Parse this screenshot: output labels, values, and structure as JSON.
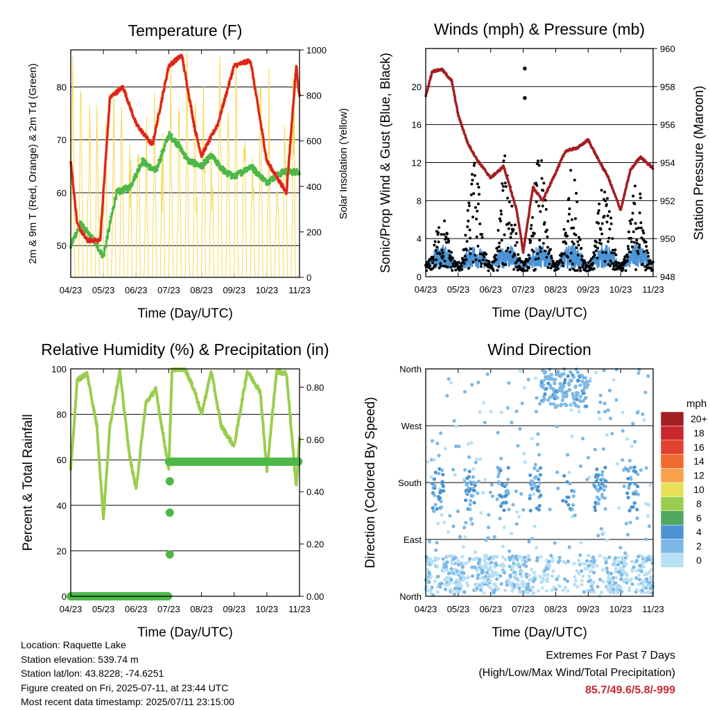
{
  "x_ticks": [
    "04/23",
    "05/23",
    "06/23",
    "07/23",
    "08/23",
    "09/23",
    "10/23",
    "11/23"
  ],
  "colors": {
    "temp_red": "#dd2222",
    "temp_orange": "#f6a336",
    "dewpoint_green": "#4db848",
    "solar_yellow": "#f7d94c",
    "wind_gust_black": "#000000",
    "wind_blue": "#4b93d4",
    "pressure_maroon": "#a31e22",
    "rh_green": "#9acd4e",
    "precip_green": "#4db848",
    "extremes_red": "#c8282d"
  },
  "chart_data": [
    {
      "type": "line",
      "title": "Temperature (F)",
      "xlabel": "Time (Day/UTC)",
      "ylabel": "2m & 9m T (Red, Orange) & 2m Td (Green)",
      "ylabel_right": "Solar Insolation (Yellow)",
      "ylim": [
        44,
        87
      ],
      "ylim_right": [
        0,
        1000
      ],
      "y_ticks": [
        50,
        60,
        70,
        80
      ],
      "y_ticks_right": [
        0,
        200,
        400,
        600,
        800,
        1000
      ],
      "series": [
        {
          "name": "2m T",
          "x": [
            0,
            0.2,
            0.5,
            0.9,
            1.2,
            1.6,
            2.0,
            2.5,
            3.0,
            3.4,
            3.8,
            4.0,
            4.5,
            5.0,
            5.5,
            6.0,
            6.3,
            6.6,
            6.9,
            7.0
          ],
          "values": [
            66,
            54,
            51,
            51,
            78,
            80,
            73,
            69,
            84,
            86,
            72,
            67,
            73,
            84,
            85,
            66,
            63,
            60,
            84,
            78
          ]
        },
        {
          "name": "2m Td",
          "x": [
            0,
            0.3,
            0.7,
            1.0,
            1.4,
            1.8,
            2.2,
            2.6,
            3.0,
            3.3,
            3.6,
            4.0,
            4.3,
            4.7,
            5.0,
            5.5,
            6.0,
            6.5,
            7.0
          ],
          "values": [
            50,
            54,
            51,
            48,
            60,
            61,
            66,
            64,
            71,
            69,
            66,
            65,
            67,
            64,
            63,
            65,
            62,
            64,
            64
          ]
        },
        {
          "name": "Solar Insolation",
          "y_axis": "right",
          "daily_peaks": [
            980,
            860,
            940,
            1000,
            980,
            990,
            1000,
            960
          ]
        }
      ]
    },
    {
      "type": "line",
      "title": "Winds (mph) & Pressure (mb)",
      "xlabel": "Time (Day/UTC)",
      "ylabel": "Sonic/Prop Wind & Gust (Blue, Black)",
      "ylabel_right": "Station Pressure (Maroon)",
      "ylim": [
        0,
        24
      ],
      "ylim_right": [
        948,
        960
      ],
      "y_ticks": [
        0,
        4,
        8,
        12,
        16,
        20
      ],
      "y_ticks_right": [
        948,
        950,
        952,
        954,
        956,
        958,
        960
      ],
      "series": [
        {
          "name": "Station Pressure",
          "y_axis": "right",
          "x": [
            0,
            0.2,
            0.5,
            0.8,
            1.0,
            1.3,
            1.6,
            2.0,
            2.4,
            2.8,
            3.0,
            3.3,
            3.6,
            3.9,
            4.3,
            4.7,
            5.0,
            5.3,
            5.6,
            6.0,
            6.3,
            6.6,
            7.0
          ],
          "values": [
            957.5,
            958.8,
            958.9,
            958.3,
            956.5,
            955.0,
            954.1,
            953.2,
            953.8,
            951.5,
            949.3,
            952.7,
            952.0,
            953.1,
            954.6,
            954.8,
            955.2,
            954.2,
            953.3,
            951.5,
            953.6,
            954.3,
            953.7
          ]
        },
        {
          "name": "Gust",
          "peak_max": [
            6,
            11.7,
            13.4,
            12.4,
            11.0,
            11.0,
            10.0,
            11.6
          ],
          "outliers": [
            [
              3.05,
              21.9
            ],
            [
              3.05,
              18.8
            ]
          ]
        },
        {
          "name": "Wind",
          "range": [
            0.3,
            3.5
          ]
        }
      ]
    },
    {
      "type": "line",
      "title": "Relative Humidity (%) & Precipitation (in)",
      "xlabel": "Time (Day/UTC)",
      "ylabel": "Percent & Total Rainfall",
      "ylim": [
        0,
        100
      ],
      "ylim_right": [
        0,
        0.87
      ],
      "y_ticks": [
        0,
        20,
        40,
        60,
        80,
        100
      ],
      "y_ticks_right": [
        "0.00",
        "0.20",
        "0.40",
        "0.60",
        "0.80"
      ],
      "series": [
        {
          "name": "RH",
          "x": [
            0,
            0.2,
            0.5,
            0.8,
            1.0,
            1.2,
            1.5,
            1.8,
            2.0,
            2.3,
            2.6,
            3.0,
            3.1,
            3.5,
            3.8,
            4.0,
            4.3,
            4.6,
            5.0,
            5.4,
            5.8,
            6.0,
            6.3,
            6.6,
            6.9,
            7.0
          ],
          "values": [
            56,
            95,
            98,
            75,
            34,
            75,
            99,
            62,
            47,
            85,
            91,
            56,
            100,
            100,
            90,
            80,
            99,
            75,
            66,
            99,
            90,
            55,
            99,
            98,
            48,
            70
          ]
        },
        {
          "name": "Total Precipitation",
          "y_axis": "right",
          "x": [
            0,
            3.0,
            3.02,
            3.04,
            3.06,
            3.1,
            7.0
          ],
          "values": [
            0,
            0,
            0.16,
            0.32,
            0.44,
            0.515,
            0.515
          ]
        }
      ]
    },
    {
      "type": "scatter",
      "title": "Wind Direction",
      "xlabel": "Time (Day/UTC)",
      "ylabel": "Direction (Colored By Speed)",
      "ylim": [
        0,
        360
      ],
      "y_ticks": [
        "North",
        "East",
        "South",
        "West",
        "North"
      ],
      "colorbar": {
        "title": "mph",
        "labels": [
          "20+",
          "18",
          "16",
          "14",
          "12",
          "10",
          "8",
          "6",
          "4",
          "2",
          "0"
        ],
        "colors": [
          "#a31e22",
          "#c8282d",
          "#e0432f",
          "#f06a2e",
          "#f9a24b",
          "#e8e05b",
          "#9acd4e",
          "#4fa85e",
          "#4b93d4",
          "#7db8e6",
          "#b8e0f5"
        ]
      }
    }
  ],
  "info": {
    "location": "Location: Raquette Lake",
    "elevation": "Station elevation: 539.74 m",
    "latlon": "Station lat/lon: 43.8228; -74.6251",
    "created": "Figure created on Fri, 2025-07-11, at 23:44 UTC",
    "recent": "Most recent data timestamp: 2025/07/11 23:15:00"
  },
  "extremes": {
    "title": "Extremes For Past 7 Days",
    "subtitle": "(High/Low/Max Wind/Total Precipitation)",
    "values": "85.7/49.6/5.8/-999"
  }
}
